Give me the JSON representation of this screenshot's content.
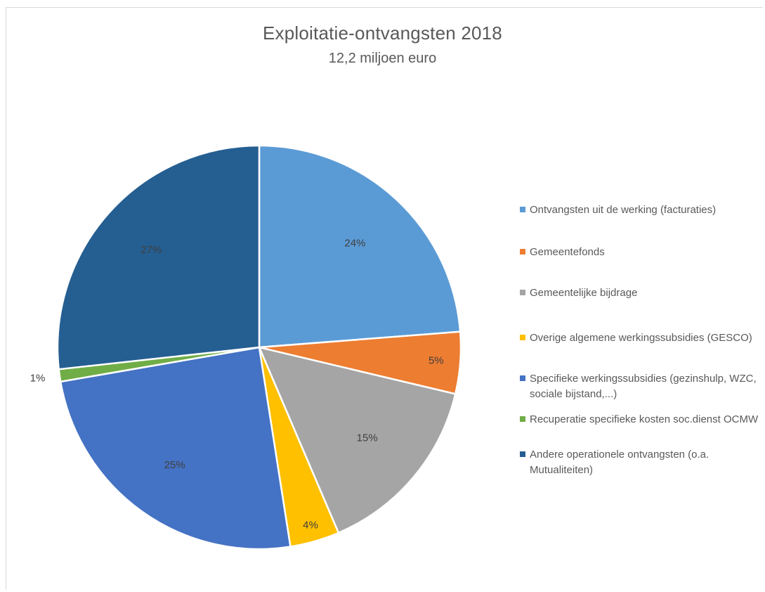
{
  "chart_data": {
    "type": "pie",
    "title": "Exploitatie-ontvangsten 2018",
    "subtitle": "12,2 miljoen euro",
    "slices": [
      {
        "name": "Ontvangsten uit de werking (facturaties)",
        "value": 24,
        "label": "24%",
        "color": "#5b9bd5"
      },
      {
        "name": "Gemeentefonds",
        "value": 5,
        "label": "5%",
        "color": "#ed7d31"
      },
      {
        "name": "Gemeentelijke bijdrage",
        "value": 15,
        "label": "15%",
        "color": "#a5a5a5"
      },
      {
        "name": "Overige algemene werkingssubsidies (GESCO)",
        "value": 4,
        "label": "4%",
        "color": "#ffc000"
      },
      {
        "name": "Specifieke werkingssubsidies (gezinshulp, WZC, sociale bijstand,...)",
        "value": 25,
        "label": "25%",
        "color": "#4472c4"
      },
      {
        "name": "Recuperatie specifieke kosten soc.dienst OCMW",
        "value": 1,
        "label": "1%",
        "color": "#70ad47"
      },
      {
        "name": "Andere operationele ontvangsten (o.a. Mutualiteiten)",
        "value": 27,
        "label": "27%",
        "color": "#255e91"
      }
    ],
    "legend_position": "right"
  }
}
